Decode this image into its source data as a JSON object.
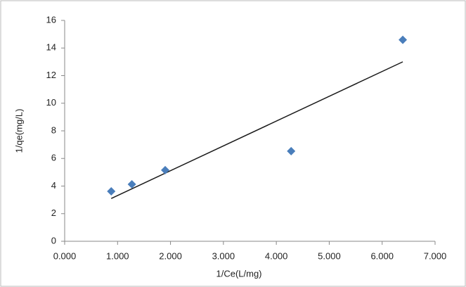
{
  "chart_data": {
    "type": "scatter",
    "x_label": "1/Ce(L/mg)",
    "y_label": "1/qe(mg/L)",
    "series": [
      {
        "color": "#4a7ebb",
        "x": [
          0.88,
          1.27,
          1.9,
          4.28,
          6.39
        ],
        "values": [
          3.62,
          4.13,
          5.15,
          6.53,
          14.59
        ]
      }
    ],
    "trendline": {
      "color": "#1a1a1a",
      "x": [
        0.88,
        6.39
      ],
      "values": [
        3.1,
        13.0
      ]
    },
    "xlim": [
      0,
      7
    ],
    "xticks": [
      {
        "value": 0,
        "label": "0.000"
      },
      {
        "value": 1,
        "label": "1.000"
      },
      {
        "value": 2,
        "label": "2.000"
      },
      {
        "value": 3,
        "label": "3.000"
      },
      {
        "value": 4,
        "label": "4.000"
      },
      {
        "value": 5,
        "label": "5.000"
      },
      {
        "value": 6,
        "label": "6.000"
      },
      {
        "value": 7,
        "label": "7.000"
      }
    ],
    "ylim": [
      0,
      16
    ],
    "yticks": [
      0,
      2,
      4,
      6,
      8,
      10,
      12,
      14,
      16
    ],
    "grid": false
  }
}
